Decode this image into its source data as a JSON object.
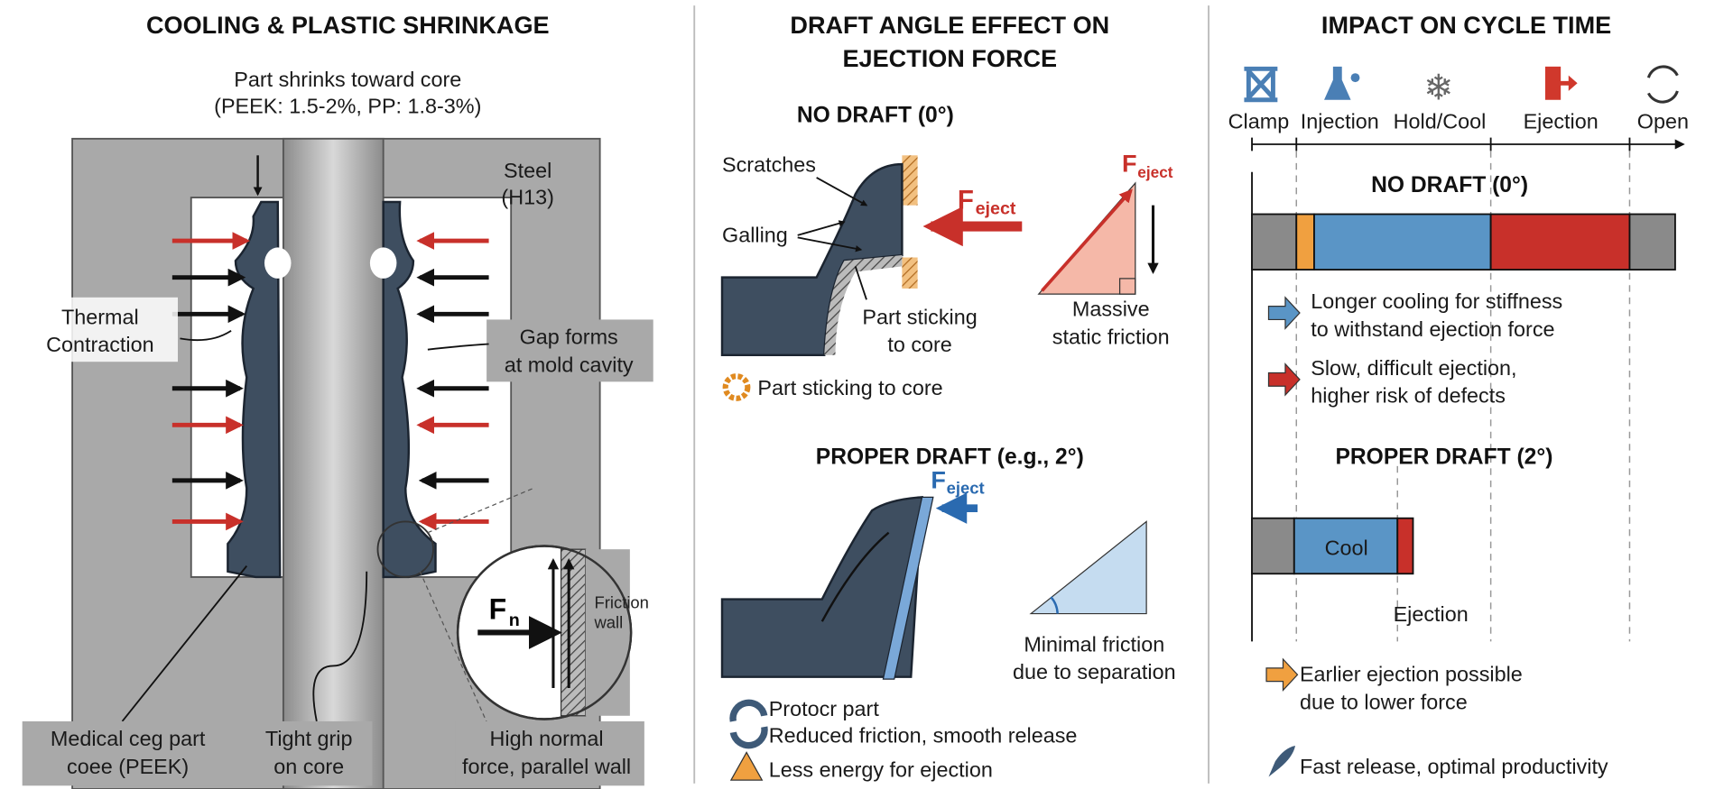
{
  "colors": {
    "steel": "#a9a9a9",
    "part": "#3e4e60",
    "red": "#c8302a",
    "blue": "#5a95c6",
    "orange": "#f0a040",
    "gray": "#8a8a8a"
  },
  "panel1": {
    "title": "COOLING & PLASTIC SHRINKAGE",
    "shrink_line1": "Part shrinks toward core",
    "shrink_line2": "(PEEK: 1.5-2%, PP: 1.8-3%)",
    "steel_line1": "Steel",
    "steel_line2": "(H13)",
    "thermal_line1": "Thermal",
    "thermal_line2": "Contraction",
    "gap_line1": "Gap forms",
    "gap_line2": "at mold cavity",
    "fn_label": "F",
    "fn_sub": "n",
    "friction_line1": "Friction",
    "friction_line2": "wall",
    "medical_line1": "Medical ceg part",
    "medical_line2": "coee (PEEK)",
    "grip_line1": "Tight grip",
    "grip_line2": "on core",
    "normal_line1": "High normal",
    "normal_line2": "force, parallel wall"
  },
  "panel2": {
    "title_line1": "DRAFT ANGLE EFFECT ON",
    "title_line2": "EJECTION FORCE",
    "no_draft": "NO DRAFT (0°)",
    "scratches": "Scratches",
    "galling": "Galling",
    "eject_label": "F",
    "eject_sub": "eject",
    "sticking_line1": "Part sticking",
    "sticking_line2": "to core",
    "static_line1": "Massive",
    "static_line2": "static friction",
    "sticking_note": "Part sticking to core",
    "proper_draft": "PROPER DRAFT (e.g., 2°)",
    "minimal_line1": "Minimal friction",
    "minimal_line2": "due to separation",
    "protocr": "Protocr part",
    "reduced": "Reduced friction, smooth release",
    "less_energy": "Less energy for ejection"
  },
  "panel3": {
    "title": "IMPACT ON CYCLE TIME",
    "phases": [
      {
        "label": "Clamp",
        "icon": "clamp-icon"
      },
      {
        "label": "Injection",
        "icon": "flask-icon"
      },
      {
        "label": "Hold/Cool",
        "icon": "snowflake-icon"
      },
      {
        "label": "Ejection",
        "icon": "exit-icon"
      },
      {
        "label": "Open",
        "icon": "refresh-icon"
      }
    ],
    "no_draft": "NO DRAFT (0°)",
    "longer_line1": "Longer cooling for stiffness",
    "longer_line2": "to withstand ejection force",
    "slow_line1": "Slow, difficult ejection,",
    "slow_line2": "higher risk of defects",
    "proper_draft": "PROPER DRAFT (2°)",
    "cool_label": "Cool",
    "ejection_label": "Ejection",
    "earlier_line1": "Earlier ejection possible",
    "earlier_line2": "due to lower force",
    "fast": "Fast release, optimal productivity"
  }
}
